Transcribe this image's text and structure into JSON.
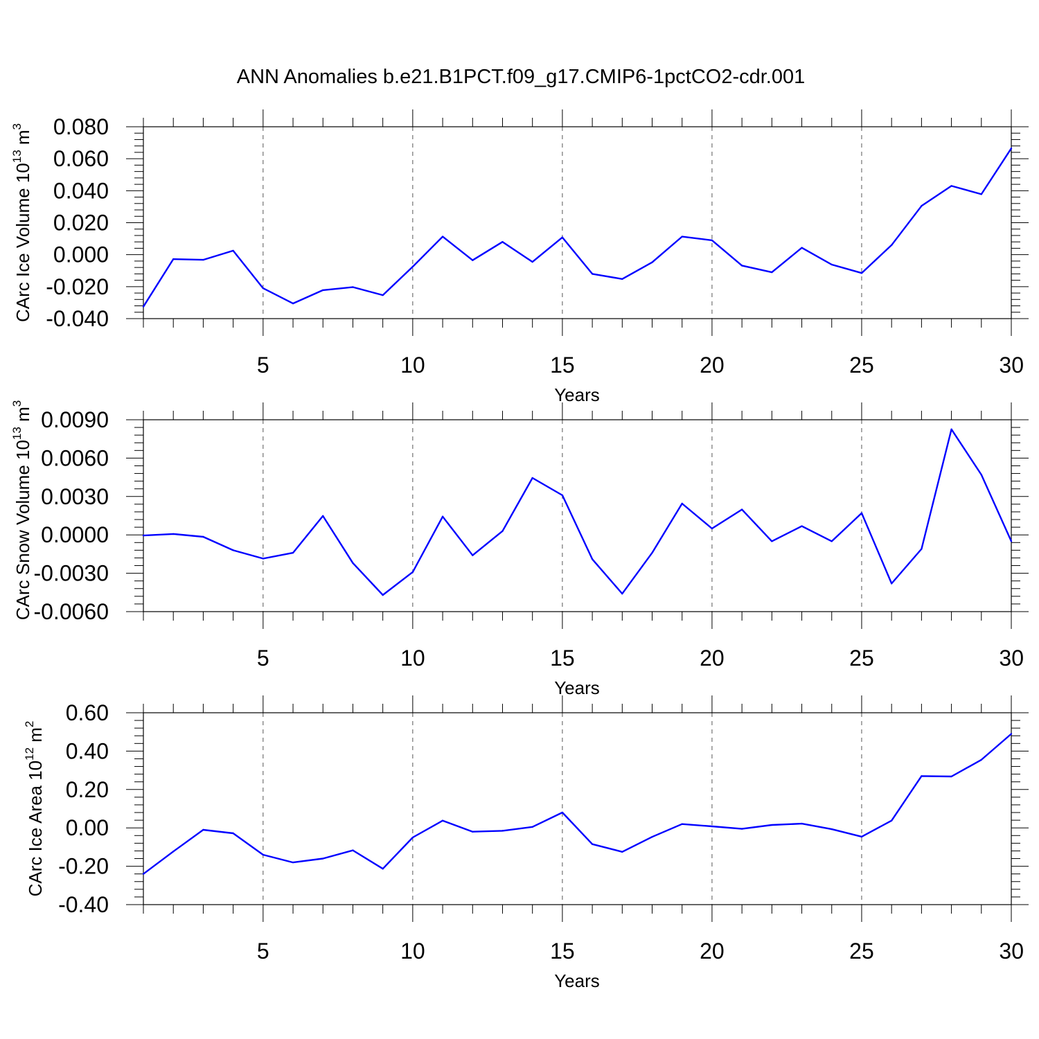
{
  "title": "ANN Anomalies b.e21.B1PCT.f09_g17.CMIP6-1pctCO2-cdr.001",
  "line_color": "#0000ff",
  "chart_data": [
    {
      "type": "line",
      "ylabel_main": "CArc Ice Volume 10",
      "ylabel_exp": "13",
      "ylabel_unit": " m",
      "ylabel_unit_exp": "3",
      "xlabel": "Years",
      "xlim": [
        1,
        30
      ],
      "ylim": [
        -0.04,
        0.08
      ],
      "yticks": [
        -0.04,
        -0.02,
        0.0,
        0.02,
        0.04,
        0.06,
        0.08
      ],
      "ytick_labels": [
        "-0.040",
        "-0.020",
        "0.000",
        "0.020",
        "0.040",
        "0.060",
        "0.080"
      ],
      "xticks": [
        5,
        10,
        15,
        20,
        25,
        30
      ],
      "xtick_labels": [
        "5",
        "10",
        "15",
        "20",
        "25",
        "30"
      ],
      "x": [
        1,
        2,
        3,
        4,
        5,
        6,
        7,
        8,
        9,
        10,
        11,
        12,
        13,
        14,
        15,
        16,
        17,
        18,
        19,
        20,
        21,
        22,
        23,
        24,
        25,
        26,
        27,
        28,
        29,
        30
      ],
      "values": [
        -0.0325,
        -0.0028,
        -0.0032,
        0.0025,
        -0.021,
        -0.0305,
        -0.0222,
        -0.0203,
        -0.0253,
        -0.0075,
        0.0113,
        -0.0035,
        0.008,
        -0.0045,
        0.0108,
        -0.012,
        -0.0152,
        -0.0048,
        0.0113,
        0.009,
        -0.0068,
        -0.011,
        0.0043,
        -0.0062,
        -0.0115,
        0.006,
        0.0305,
        0.043,
        0.0378,
        0.0665
      ]
    },
    {
      "type": "line",
      "ylabel_main": "CArc Snow Volume 10",
      "ylabel_exp": "13",
      "ylabel_unit": " m",
      "ylabel_unit_exp": "3",
      "xlabel": "Years",
      "xlim": [
        1,
        30
      ],
      "ylim": [
        -0.006,
        0.009
      ],
      "yticks": [
        -0.006,
        -0.003,
        0.0,
        0.003,
        0.006,
        0.009
      ],
      "ytick_labels": [
        "-0.0060",
        "-0.0030",
        "0.0000",
        "0.0030",
        "0.0060",
        "0.0090"
      ],
      "xticks": [
        5,
        10,
        15,
        20,
        25,
        30
      ],
      "xtick_labels": [
        "5",
        "10",
        "15",
        "20",
        "25",
        "30"
      ],
      "x": [
        1,
        2,
        3,
        4,
        5,
        6,
        7,
        8,
        9,
        10,
        11,
        12,
        13,
        14,
        15,
        16,
        17,
        18,
        19,
        20,
        21,
        22,
        23,
        24,
        25,
        26,
        27,
        28,
        29,
        30
      ],
      "values": [
        -5e-05,
        7e-05,
        -0.00015,
        -0.0012,
        -0.00185,
        -0.0014,
        0.00148,
        -0.0022,
        -0.0047,
        -0.0029,
        0.00143,
        -0.0016,
        0.0003,
        0.00445,
        0.0031,
        -0.0019,
        -0.0046,
        -0.0014,
        0.00245,
        0.0005,
        0.00198,
        -0.0005,
        0.00068,
        -0.0005,
        0.0017,
        -0.0038,
        -0.0011,
        0.00825,
        0.0047,
        -0.0005
      ]
    },
    {
      "type": "line",
      "ylabel_main": "CArc Ice Area 10",
      "ylabel_exp": "12",
      "ylabel_unit": " m",
      "ylabel_unit_exp": "2",
      "xlabel": "Years",
      "xlim": [
        1,
        30
      ],
      "ylim": [
        -0.4,
        0.6
      ],
      "yticks": [
        -0.4,
        -0.2,
        0.0,
        0.2,
        0.4,
        0.6
      ],
      "ytick_labels": [
        "-0.40",
        "-0.20",
        "0.00",
        "0.20",
        "0.40",
        "0.60"
      ],
      "xticks": [
        5,
        10,
        15,
        20,
        25,
        30
      ],
      "xtick_labels": [
        "5",
        "10",
        "15",
        "20",
        "25",
        "30"
      ],
      "x": [
        1,
        2,
        3,
        4,
        5,
        6,
        7,
        8,
        9,
        10,
        11,
        12,
        13,
        14,
        15,
        16,
        17,
        18,
        19,
        20,
        21,
        22,
        23,
        24,
        25,
        26,
        27,
        28,
        29,
        30
      ],
      "values": [
        -0.24,
        -0.123,
        -0.01,
        -0.028,
        -0.14,
        -0.18,
        -0.16,
        -0.117,
        -0.213,
        -0.05,
        0.038,
        -0.02,
        -0.015,
        0.005,
        0.08,
        -0.085,
        -0.125,
        -0.047,
        0.02,
        0.008,
        -0.005,
        0.015,
        0.022,
        -0.007,
        -0.046,
        0.038,
        0.27,
        0.268,
        0.355,
        0.49
      ]
    }
  ]
}
